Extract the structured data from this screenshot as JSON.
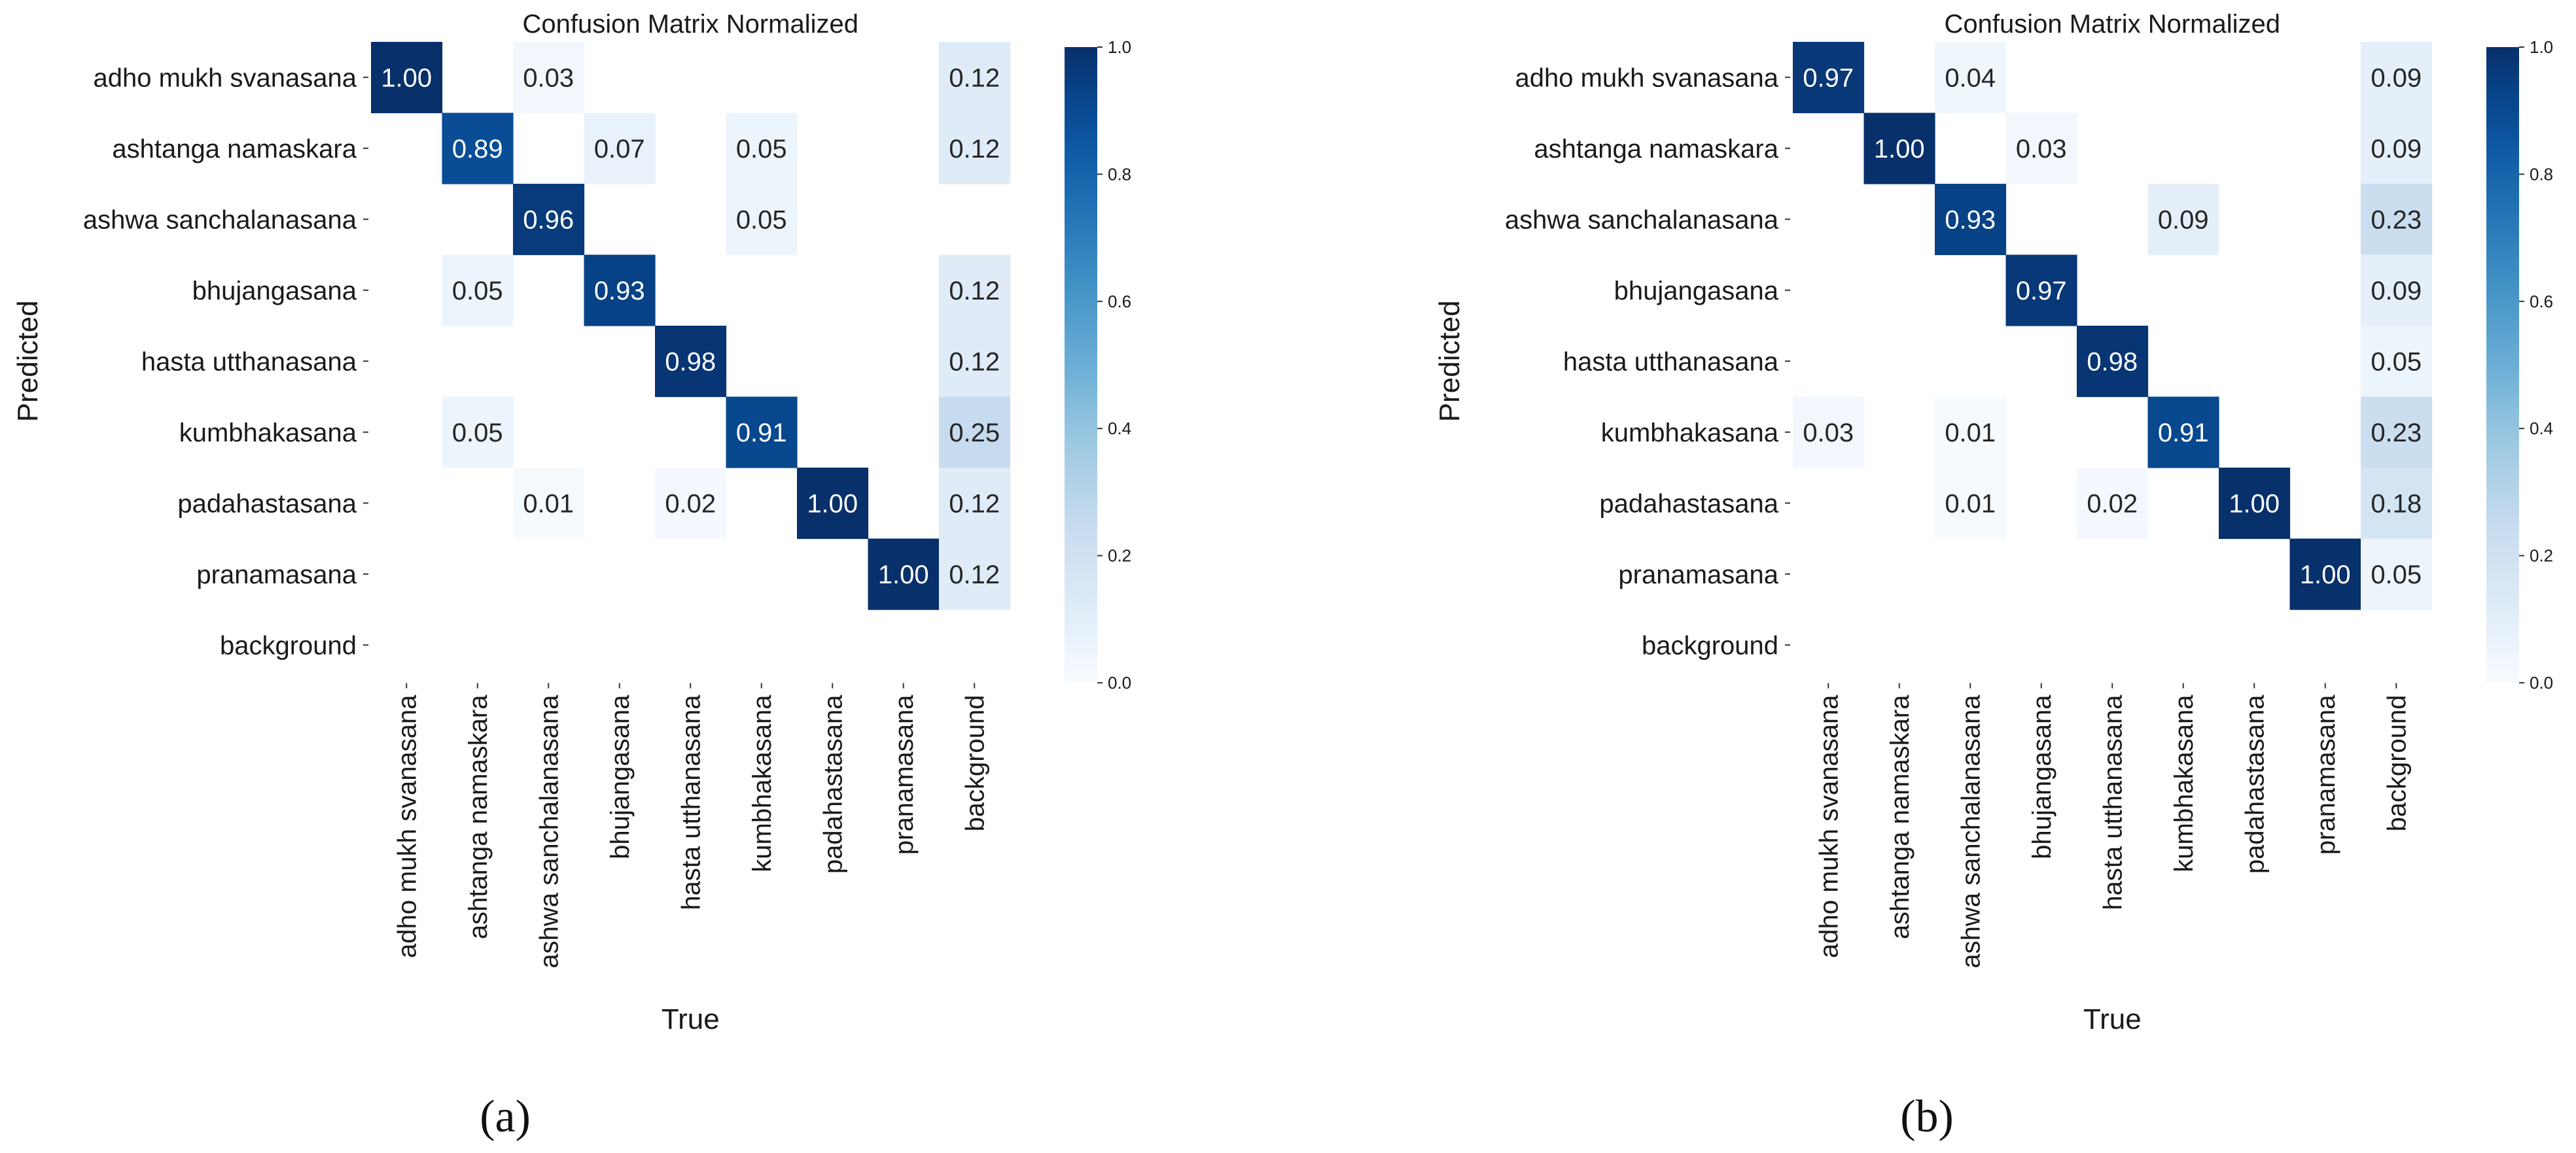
{
  "chart_data": [
    {
      "type": "heatmap",
      "title": "Confusion Matrix Normalized",
      "xlabel": "True",
      "ylabel": "Predicted",
      "panel_label": "(a)",
      "rows": [
        "adho mukh svanasana",
        "ashtanga namaskara",
        "ashwa sanchalanasana",
        "bhujangasana",
        "hasta utthanasana",
        "kumbhakasana",
        "padahastasana",
        "pranamasana",
        "background"
      ],
      "columns": [
        "adho mukh svanasana",
        "ashtanga namaskara",
        "ashwa sanchalanasana",
        "bhujangasana",
        "hasta utthanasana",
        "kumbhakasana",
        "padahastasana",
        "pranamasana",
        "background"
      ],
      "values": [
        [
          1.0,
          null,
          0.03,
          null,
          null,
          null,
          null,
          null,
          0.12
        ],
        [
          null,
          0.89,
          null,
          0.07,
          null,
          0.05,
          null,
          null,
          0.12
        ],
        [
          null,
          null,
          0.96,
          null,
          null,
          0.05,
          null,
          null,
          null
        ],
        [
          null,
          0.05,
          null,
          0.93,
          null,
          null,
          null,
          null,
          0.12
        ],
        [
          null,
          null,
          null,
          null,
          0.98,
          null,
          null,
          null,
          0.12
        ],
        [
          null,
          0.05,
          null,
          null,
          null,
          0.91,
          null,
          null,
          0.25
        ],
        [
          null,
          null,
          0.01,
          null,
          0.02,
          null,
          1.0,
          null,
          0.12
        ],
        [
          null,
          null,
          null,
          null,
          null,
          null,
          null,
          1.0,
          0.12
        ],
        [
          null,
          null,
          null,
          null,
          null,
          null,
          null,
          null,
          null
        ]
      ],
      "colorbar": {
        "range": [
          0.0,
          1.0
        ],
        "ticks": [
          "0.0",
          "0.2",
          "0.4",
          "0.6",
          "0.8",
          "1.0"
        ]
      },
      "colormap": "Blues",
      "grid": false
    },
    {
      "type": "heatmap",
      "title": "Confusion Matrix Normalized",
      "xlabel": "True",
      "ylabel": "Predicted",
      "panel_label": "(b)",
      "rows": [
        "adho mukh svanasana",
        "ashtanga namaskara",
        "ashwa sanchalanasana",
        "bhujangasana",
        "hasta utthanasana",
        "kumbhakasana",
        "padahastasana",
        "pranamasana",
        "background"
      ],
      "columns": [
        "adho mukh svanasana",
        "ashtanga namaskara",
        "ashwa sanchalanasana",
        "bhujangasana",
        "hasta utthanasana",
        "kumbhakasana",
        "padahastasana",
        "pranamasana",
        "background"
      ],
      "values": [
        [
          0.97,
          null,
          0.04,
          null,
          null,
          null,
          null,
          null,
          0.09
        ],
        [
          null,
          1.0,
          null,
          0.03,
          null,
          null,
          null,
          null,
          0.09
        ],
        [
          null,
          null,
          0.93,
          null,
          null,
          0.09,
          null,
          null,
          0.23
        ],
        [
          null,
          null,
          null,
          0.97,
          null,
          null,
          null,
          null,
          0.09
        ],
        [
          null,
          null,
          null,
          null,
          0.98,
          null,
          null,
          null,
          0.05
        ],
        [
          0.03,
          null,
          0.01,
          null,
          null,
          0.91,
          null,
          null,
          0.23
        ],
        [
          null,
          null,
          0.01,
          null,
          0.02,
          null,
          1.0,
          null,
          0.18
        ],
        [
          null,
          null,
          null,
          null,
          null,
          null,
          null,
          1.0,
          0.05
        ],
        [
          null,
          null,
          null,
          null,
          null,
          null,
          null,
          null,
          null
        ]
      ],
      "colorbar": {
        "range": [
          0.0,
          1.0
        ],
        "ticks": [
          "0.0",
          "0.2",
          "0.4",
          "0.6",
          "0.8",
          "1.0"
        ]
      },
      "colormap": "Blues",
      "grid": false
    }
  ]
}
